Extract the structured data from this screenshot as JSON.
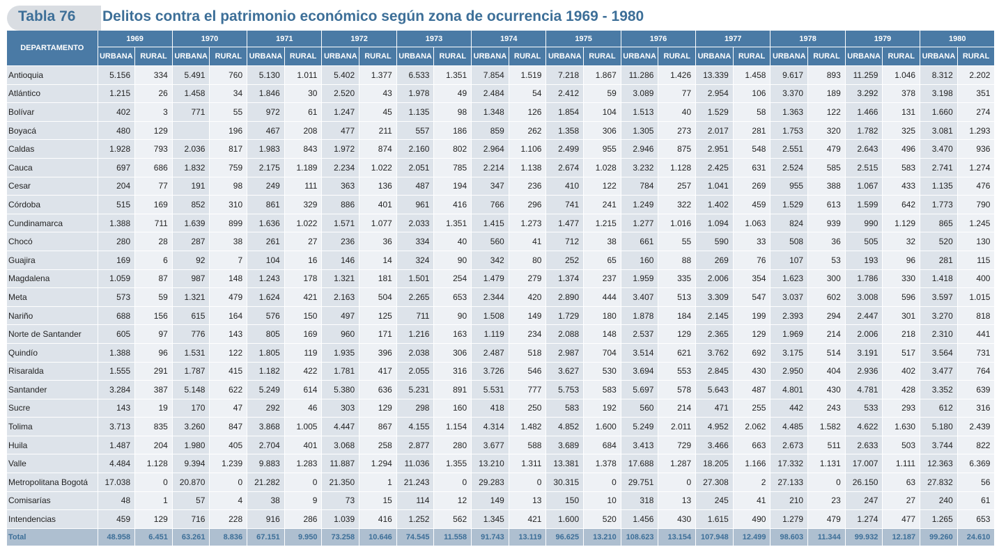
{
  "header": {
    "tag": "Tabla 76",
    "title": "Delitos contra el patrimonio económico según zona de ocurrencia 1969 - 1980"
  },
  "table": {
    "dept_header": "DEPARTAMENTO",
    "urban_label": "URBANA",
    "rural_label": "RURAL",
    "years": [
      "1969",
      "1970",
      "1971",
      "1972",
      "1973",
      "1974",
      "1975",
      "1976",
      "1977",
      "1978",
      "1979",
      "1980"
    ],
    "rows": [
      {
        "name": "Antioquia",
        "values": [
          "5.156",
          "334",
          "5.491",
          "760",
          "5.130",
          "1.011",
          "5.402",
          "1.377",
          "6.533",
          "1.351",
          "7.854",
          "1.519",
          "7.218",
          "1.867",
          "11.286",
          "1.426",
          "13.339",
          "1.458",
          "9.617",
          "893",
          "11.259",
          "1.046",
          "8.312",
          "2.202"
        ]
      },
      {
        "name": "Atlántico",
        "values": [
          "1.215",
          "26",
          "1.458",
          "34",
          "1.846",
          "30",
          "2.520",
          "43",
          "1.978",
          "49",
          "2.484",
          "54",
          "2.412",
          "59",
          "3.089",
          "77",
          "2.954",
          "106",
          "3.370",
          "189",
          "3.292",
          "378",
          "3.198",
          "351"
        ]
      },
      {
        "name": "Bolívar",
        "values": [
          "402",
          "3",
          "771",
          "55",
          "972",
          "61",
          "1.247",
          "45",
          "1.135",
          "98",
          "1.348",
          "126",
          "1.854",
          "104",
          "1.513",
          "40",
          "1.529",
          "58",
          "1.363",
          "122",
          "1.466",
          "131",
          "1.660",
          "274"
        ]
      },
      {
        "name": "Boyacá",
        "values": [
          "480",
          "129",
          "",
          "196",
          "467",
          "208",
          "477",
          "211",
          "557",
          "186",
          "859",
          "262",
          "1.358",
          "306",
          "1.305",
          "273",
          "2.017",
          "281",
          "1.753",
          "320",
          "1.782",
          "325",
          "3.081",
          "1.293"
        ]
      },
      {
        "name": "Caldas",
        "values": [
          "1.928",
          "793",
          "2.036",
          "817",
          "1.983",
          "843",
          "1.972",
          "874",
          "2.160",
          "802",
          "2.964",
          "1.106",
          "2.499",
          "955",
          "2.946",
          "875",
          "2.951",
          "548",
          "2.551",
          "479",
          "2.643",
          "496",
          "3.470",
          "936"
        ]
      },
      {
        "name": "Cauca",
        "values": [
          "697",
          "686",
          "1.832",
          "759",
          "2.175",
          "1.189",
          "2.234",
          "1.022",
          "2.051",
          "785",
          "2.214",
          "1.138",
          "2.674",
          "1.028",
          "3.232",
          "1.128",
          "2.425",
          "631",
          "2.524",
          "585",
          "2.515",
          "583",
          "2.741",
          "1.274"
        ]
      },
      {
        "name": "Cesar",
        "values": [
          "204",
          "77",
          "191",
          "98",
          "249",
          "111",
          "363",
          "136",
          "487",
          "194",
          "347",
          "236",
          "410",
          "122",
          "784",
          "257",
          "1.041",
          "269",
          "955",
          "388",
          "1.067",
          "433",
          "1.135",
          "476"
        ]
      },
      {
        "name": "Córdoba",
        "values": [
          "515",
          "169",
          "852",
          "310",
          "861",
          "329",
          "886",
          "401",
          "961",
          "416",
          "766",
          "296",
          "741",
          "241",
          "1.249",
          "322",
          "1.402",
          "459",
          "1.529",
          "613",
          "1.599",
          "642",
          "1.773",
          "790"
        ]
      },
      {
        "name": "Cundinamarca",
        "values": [
          "1.388",
          "711",
          "1.639",
          "899",
          "1.636",
          "1.022",
          "1.571",
          "1.077",
          "2.033",
          "1.351",
          "1.415",
          "1.273",
          "1.477",
          "1.215",
          "1.277",
          "1.016",
          "1.094",
          "1.063",
          "824",
          "939",
          "990",
          "1.129",
          "865",
          "1.245"
        ]
      },
      {
        "name": "Chocó",
        "values": [
          "280",
          "28",
          "287",
          "38",
          "261",
          "27",
          "236",
          "36",
          "334",
          "40",
          "560",
          "41",
          "712",
          "38",
          "661",
          "55",
          "590",
          "33",
          "508",
          "36",
          "505",
          "32",
          "520",
          "130"
        ]
      },
      {
        "name": "Guajira",
        "values": [
          "169",
          "6",
          "92",
          "7",
          "104",
          "16",
          "146",
          "14",
          "324",
          "90",
          "342",
          "80",
          "252",
          "65",
          "160",
          "88",
          "269",
          "76",
          "107",
          "53",
          "193",
          "96",
          "281",
          "115"
        ]
      },
      {
        "name": "Magdalena",
        "values": [
          "1.059",
          "87",
          "987",
          "148",
          "1.243",
          "178",
          "1.321",
          "181",
          "1.501",
          "254",
          "1.479",
          "279",
          "1.374",
          "237",
          "1.959",
          "335",
          "2.006",
          "354",
          "1.623",
          "300",
          "1.786",
          "330",
          "1.418",
          "400"
        ]
      },
      {
        "name": "Meta",
        "values": [
          "573",
          "59",
          "1.321",
          "479",
          "1.624",
          "421",
          "2.163",
          "504",
          "2.265",
          "653",
          "2.344",
          "420",
          "2.890",
          "444",
          "3.407",
          "513",
          "3.309",
          "547",
          "3.037",
          "602",
          "3.008",
          "596",
          "3.597",
          "1.015"
        ]
      },
      {
        "name": "Nariño",
        "values": [
          "688",
          "156",
          "615",
          "164",
          "576",
          "150",
          "497",
          "125",
          "711",
          "90",
          "1.508",
          "149",
          "1.729",
          "180",
          "1.878",
          "184",
          "2.145",
          "199",
          "2.393",
          "294",
          "2.447",
          "301",
          "3.270",
          "818"
        ]
      },
      {
        "name": "Norte de Santander",
        "values": [
          "605",
          "97",
          "776",
          "143",
          "805",
          "169",
          "960",
          "171",
          "1.216",
          "163",
          "1.119",
          "234",
          "2.088",
          "148",
          "2.537",
          "129",
          "2.365",
          "129",
          "1.969",
          "214",
          "2.006",
          "218",
          "2.310",
          "441"
        ]
      },
      {
        "name": "Quindío",
        "values": [
          "1.388",
          "96",
          "1.531",
          "122",
          "1.805",
          "119",
          "1.935",
          "396",
          "2.038",
          "306",
          "2.487",
          "518",
          "2.987",
          "704",
          "3.514",
          "621",
          "3.762",
          "692",
          "3.175",
          "514",
          "3.191",
          "517",
          "3.564",
          "731"
        ]
      },
      {
        "name": "Risaralda",
        "values": [
          "1.555",
          "291",
          "1.787",
          "415",
          "1.182",
          "422",
          "1.781",
          "417",
          "2.055",
          "316",
          "3.726",
          "546",
          "3.627",
          "530",
          "3.694",
          "553",
          "2.845",
          "430",
          "2.950",
          "404",
          "2.936",
          "402",
          "3.477",
          "764"
        ]
      },
      {
        "name": "Santander",
        "values": [
          "3.284",
          "387",
          "5.148",
          "622",
          "5.249",
          "614",
          "5.380",
          "636",
          "5.231",
          "891",
          "5.531",
          "777",
          "5.753",
          "583",
          "5.697",
          "578",
          "5.643",
          "487",
          "4.801",
          "430",
          "4.781",
          "428",
          "3.352",
          "639"
        ]
      },
      {
        "name": "Sucre",
        "values": [
          "143",
          "19",
          "170",
          "47",
          "292",
          "46",
          "303",
          "129",
          "298",
          "160",
          "418",
          "250",
          "583",
          "192",
          "560",
          "214",
          "471",
          "255",
          "442",
          "243",
          "533",
          "293",
          "612",
          "316"
        ]
      },
      {
        "name": "Tolima",
        "values": [
          "3.713",
          "835",
          "3.260",
          "847",
          "3.868",
          "1.005",
          "4.447",
          "867",
          "4.155",
          "1.154",
          "4.314",
          "1.482",
          "4.852",
          "1.600",
          "5.249",
          "2.011",
          "4.952",
          "2.062",
          "4.485",
          "1.582",
          "4.622",
          "1.630",
          "5.180",
          "2.439"
        ]
      },
      {
        "name": "Huila",
        "values": [
          "1.487",
          "204",
          "1.980",
          "405",
          "2.704",
          "401",
          "3.068",
          "258",
          "2.877",
          "280",
          "3.677",
          "588",
          "3.689",
          "684",
          "3.413",
          "729",
          "3.466",
          "663",
          "2.673",
          "511",
          "2.633",
          "503",
          "3.744",
          "822"
        ]
      },
      {
        "name": "Valle",
        "values": [
          "4.484",
          "1.128",
          "9.394",
          "1.239",
          "9.883",
          "1.283",
          "11.887",
          "1.294",
          "11.036",
          "1.355",
          "13.210",
          "1.311",
          "13.381",
          "1.378",
          "17.688",
          "1.287",
          "18.205",
          "1.166",
          "17.332",
          "1.131",
          "17.007",
          "1.111",
          "12.363",
          "6.369"
        ]
      },
      {
        "name": "Metropolitana Bogotá",
        "values": [
          "17.038",
          "0",
          "20.870",
          "0",
          "21.282",
          "0",
          "21.350",
          "1",
          "21.243",
          "0",
          "29.283",
          "0",
          "30.315",
          "0",
          "29.751",
          "0",
          "27.308",
          "2",
          "27.133",
          "0",
          "26.150",
          "63",
          "27.832",
          "56"
        ]
      },
      {
        "name": "Comisarías",
        "values": [
          "48",
          "1",
          "57",
          "4",
          "38",
          "9",
          "73",
          "15",
          "114",
          "12",
          "149",
          "13",
          "150",
          "10",
          "318",
          "13",
          "245",
          "41",
          "210",
          "23",
          "247",
          "27",
          "240",
          "61"
        ]
      },
      {
        "name": "Intendencias",
        "values": [
          "459",
          "129",
          "716",
          "228",
          "916",
          "286",
          "1.039",
          "416",
          "1.252",
          "562",
          "1.345",
          "421",
          "1.600",
          "520",
          "1.456",
          "430",
          "1.615",
          "490",
          "1.279",
          "479",
          "1.274",
          "477",
          "1.265",
          "653"
        ]
      }
    ],
    "total": {
      "name": "Total",
      "values": [
        "48.958",
        "6.451",
        "63.261",
        "8.836",
        "67.151",
        "9.950",
        "73.258",
        "10.646",
        "74.545",
        "11.558",
        "91.743",
        "13.119",
        "96.625",
        "13.210",
        "108.623",
        "13.154",
        "107.948",
        "12.499",
        "98.603",
        "11.344",
        "99.932",
        "12.187",
        "99.260",
        "24.610"
      ]
    }
  }
}
